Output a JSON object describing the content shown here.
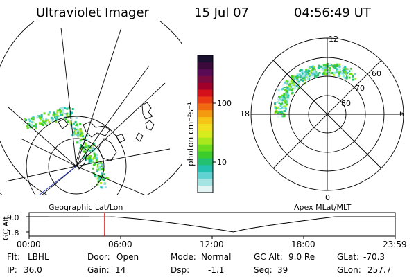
{
  "header": {
    "title": "Ultraviolet Imager",
    "date": "15 Jul 07",
    "time": "04:56:49 UT"
  },
  "colorbar": {
    "unit_label": "photon cm⁻²s⁻¹",
    "ticks": [
      "100",
      "10"
    ],
    "colors": [
      "#1a1030",
      "#3b0a3b",
      "#5a0a55",
      "#7a0a40",
      "#a0002a",
      "#d4101a",
      "#ea3a14",
      "#f06a14",
      "#f49a10",
      "#f5c416",
      "#f0e020",
      "#d6ec1c",
      "#a8e81c",
      "#6ddc1c",
      "#3ccc2c",
      "#22c070",
      "#24c0b0",
      "#60d2d2",
      "#a6e4e4",
      "#e2f4f4"
    ]
  },
  "left_map": {
    "label": "Geographic Lat/Lon"
  },
  "right_map": {
    "label": "Apex MLat/MLT",
    "mlt_labels": [
      "12",
      "18",
      "6",
      "0"
    ],
    "lat_labels": [
      "60",
      "70",
      "80"
    ]
  },
  "altitude_strip": {
    "axis_label": "GC Alt",
    "ytick_high": "9.0",
    "ytick_low": "1.8",
    "time_ticks": [
      "00:00",
      "06:00",
      "12:00",
      "18:00",
      "23:59"
    ],
    "current_time_fraction": 0.2062
  },
  "info": {
    "row1": [
      {
        "label": "Flt:",
        "value": "LBHL"
      },
      {
        "label": "Door:",
        "value": "Open"
      },
      {
        "label": "Mode:",
        "value": "Normal"
      },
      {
        "label": "GC Alt:",
        "value": "9.0 Re"
      },
      {
        "label": "GLat:",
        "value": "-70.3"
      }
    ],
    "row2": [
      {
        "label": "IP:",
        "value": "36.0"
      },
      {
        "label": "Gain:",
        "value": "14"
      },
      {
        "label": "Dsp:",
        "value": "-1.1"
      },
      {
        "label": "Seq:",
        "value": "39"
      },
      {
        "label": "GLon:",
        "value": "257.7"
      }
    ]
  }
}
